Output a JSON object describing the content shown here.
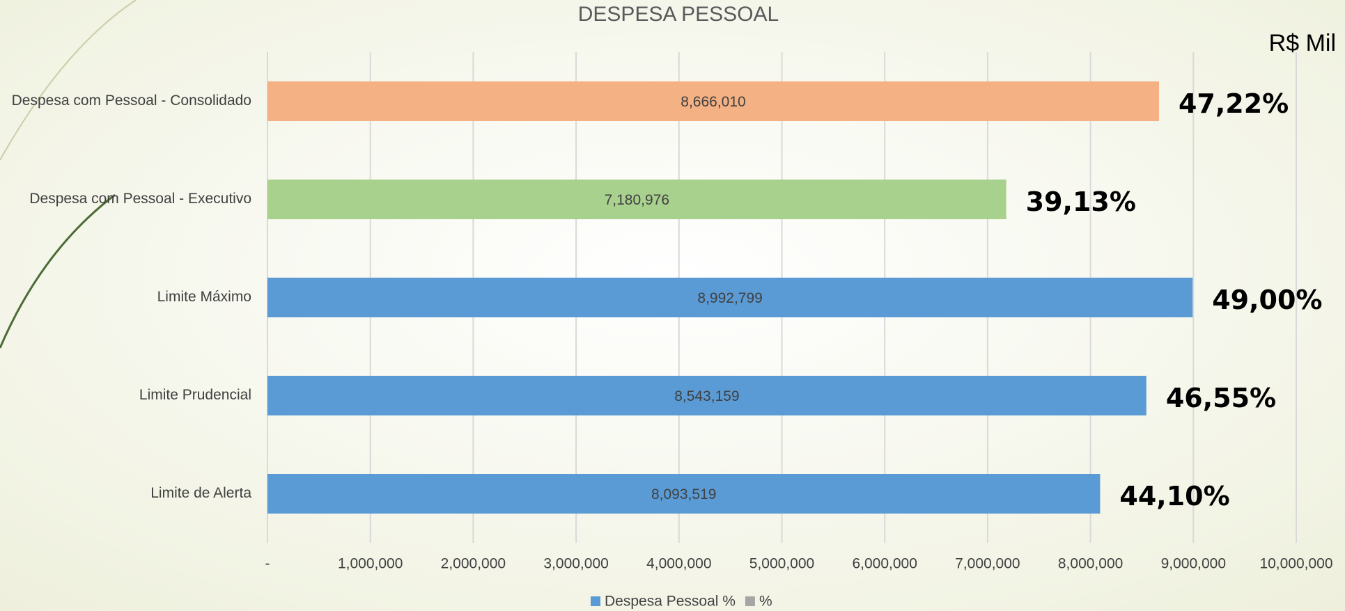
{
  "chart_data": {
    "type": "bar",
    "orientation": "horizontal",
    "title": "DESPESA PESSOAL",
    "unit_label": "R$ Mil",
    "categories": [
      "Despesa com Pessoal - Consolidado",
      "Despesa com Pessoal - Executivo",
      "Limite Máximo",
      "Limite Prudencial",
      "Limite de Alerta"
    ],
    "series": [
      {
        "name": "Despesa Pessoal %",
        "color": "#5b9bd5",
        "colors": [
          "#f4b183",
          "#a9d18e",
          "#5b9bd5",
          "#5b9bd5",
          "#5b9bd5"
        ],
        "values": [
          8666010,
          7180976,
          8992799,
          8543159,
          8093519
        ],
        "value_labels": [
          "8,666,010",
          "7,180,976",
          "8,992,799",
          "8,543,159",
          "8,093,519"
        ]
      },
      {
        "name": "%",
        "color": "#a5a5a5",
        "values": [
          47.22,
          39.13,
          49,
          46.55,
          44.1
        ],
        "value_labels": [
          "47,22%",
          "39,13%",
          "49,00%",
          "46,55%",
          "44,10%"
        ]
      }
    ],
    "xlim": [
      0,
      10000000
    ],
    "xticks": [
      {
        "value": 0,
        "label": "-"
      },
      {
        "value": 1000000,
        "label": "1,000,000"
      },
      {
        "value": 2000000,
        "label": "2,000,000"
      },
      {
        "value": 3000000,
        "label": "3,000,000"
      },
      {
        "value": 4000000,
        "label": "4,000,000"
      },
      {
        "value": 5000000,
        "label": "5,000,000"
      },
      {
        "value": 6000000,
        "label": "6,000,000"
      },
      {
        "value": 7000000,
        "label": "7,000,000"
      },
      {
        "value": 8000000,
        "label": "8,000,000"
      },
      {
        "value": 9000000,
        "label": "9,000,000"
      },
      {
        "value": 10000000,
        "label": "10,000,000"
      }
    ],
    "grid": true,
    "legend": "bottom"
  }
}
